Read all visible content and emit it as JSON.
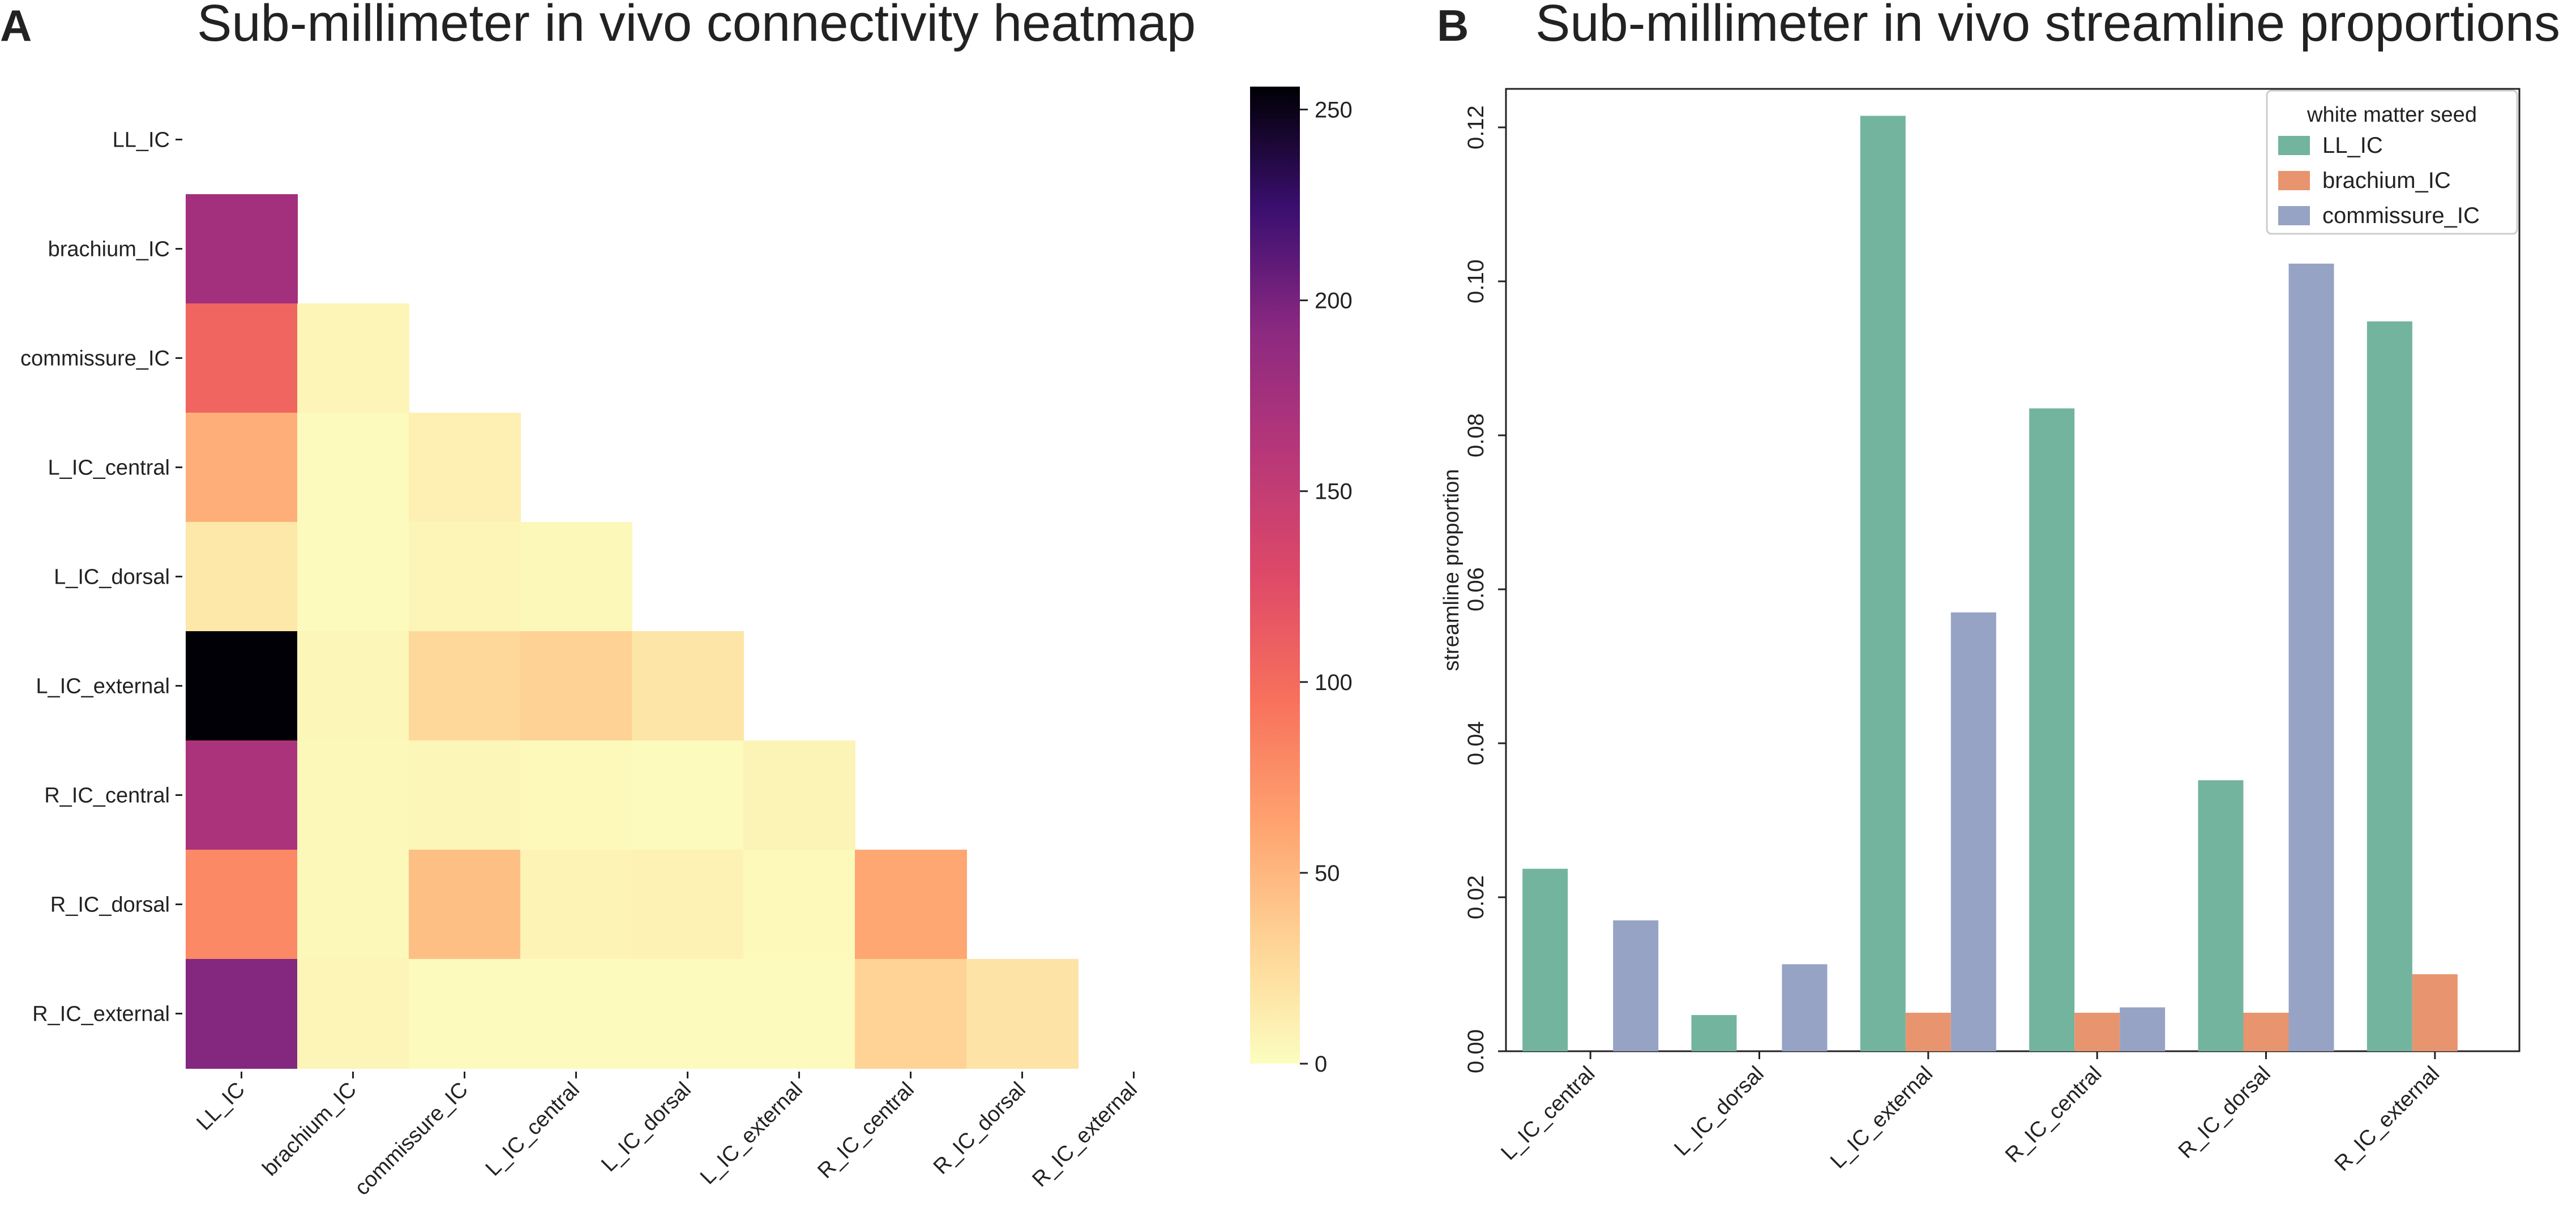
{
  "panel_a": {
    "letter": "A"
  },
  "panel_b": {
    "letter": "B"
  },
  "chart_data": [
    {
      "type": "heatmap",
      "title": "Sub-millimeter in vivo connectivity heatmap",
      "rows": [
        "LL_IC",
        "brachium_IC",
        "commissure_IC",
        "L_IC_central",
        "L_IC_dorsal",
        "L_IC_external",
        "R_IC_central",
        "R_IC_dorsal",
        "R_IC_external"
      ],
      "cols": [
        "LL_IC",
        "brachium_IC",
        "commissure_IC",
        "L_IC_central",
        "L_IC_dorsal",
        "L_IC_external",
        "R_IC_central",
        "R_IC_dorsal",
        "R_IC_external"
      ],
      "values": [
        [
          null,
          null,
          null,
          null,
          null,
          null,
          null,
          null,
          null
        ],
        [
          175,
          null,
          null,
          null,
          null,
          null,
          null,
          null,
          null
        ],
        [
          105,
          6,
          null,
          null,
          null,
          null,
          null,
          null,
          null
        ],
        [
          55,
          2,
          10,
          null,
          null,
          null,
          null,
          null,
          null
        ],
        [
          17,
          2,
          6,
          4,
          null,
          null,
          null,
          null,
          null
        ],
        [
          255,
          5,
          28,
          33,
          18,
          null,
          null,
          null,
          null
        ],
        [
          170,
          4,
          5,
          3,
          2,
          7,
          null,
          null,
          null
        ],
        [
          80,
          4,
          45,
          8,
          9,
          3,
          60,
          null,
          null
        ],
        [
          195,
          6,
          2,
          2,
          2,
          2,
          32,
          20,
          null
        ]
      ],
      "colormap": "magma_r",
      "colorbar": {
        "min": 0,
        "max": 256,
        "ticks": [
          0,
          50,
          100,
          150,
          200,
          250
        ]
      }
    },
    {
      "type": "bar",
      "title": "Sub-millimeter in vivo streamline proportions",
      "xlabel": "",
      "ylabel": "streamline proportion",
      "ylim": [
        0,
        0.125
      ],
      "yticks": [
        0.0,
        0.02,
        0.04,
        0.06,
        0.08,
        0.1,
        0.12
      ],
      "categories": [
        "L_IC_central",
        "L_IC_dorsal",
        "L_IC_external",
        "R_IC_central",
        "R_IC_dorsal",
        "R_IC_external"
      ],
      "legend_title": "white matter seed",
      "legend_position": "top-right",
      "series": [
        {
          "name": "LL_IC",
          "color": "#73b49f",
          "values": [
            0.0237,
            0.0047,
            0.1215,
            0.0835,
            0.0352,
            0.0948
          ]
        },
        {
          "name": "brachium_IC",
          "color": "#e8946f",
          "values": [
            0.0,
            0.0,
            0.005,
            0.005,
            0.005,
            0.01
          ]
        },
        {
          "name": "commissure_IC",
          "color": "#96a3c4",
          "values": [
            0.017,
            0.0113,
            0.057,
            0.0057,
            0.1023,
            0.0
          ]
        }
      ]
    }
  ]
}
